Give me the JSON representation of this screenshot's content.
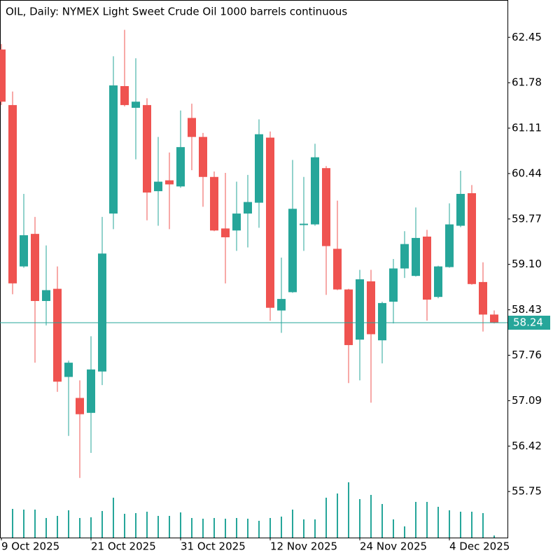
{
  "chart_data": {
    "type": "candlestick",
    "title": "OIL, Daily:  NYMEX Light Sweet Crude Oil 1000 barrels continuous",
    "categories": [
      "9 Oct 2025",
      null,
      null,
      null,
      null,
      null,
      null,
      null,
      "21 Oct 2025",
      null,
      null,
      null,
      null,
      null,
      null,
      null,
      "31 Oct 2025",
      null,
      null,
      null,
      null,
      null,
      null,
      null,
      "12 Nov 2025",
      null,
      null,
      null,
      null,
      null,
      null,
      null,
      "24 Nov 2025",
      null,
      null,
      null,
      null,
      null,
      null,
      null,
      "4 Dec 2025",
      null,
      null,
      null,
      null
    ],
    "open": [
      62.27,
      61.45,
      59.07,
      59.55,
      58.56,
      58.74,
      57.44,
      57.13,
      56.91,
      57.52,
      59.85,
      61.73,
      61.41,
      61.45,
      60.18,
      60.34,
      60.25,
      61.26,
      60.98,
      60.39,
      59.63,
      59.6,
      59.85,
      60.01,
      60.97,
      58.42,
      58.69,
      59.68,
      59.69,
      60.52,
      59.33,
      58.73,
      57.99,
      58.85,
      57.98,
      58.55,
      59.04,
      58.93,
      59.51,
      58.62,
      59.06,
      59.67,
      60.15,
      58.84,
      58.36
    ],
    "high": [
      62.35,
      61.65,
      60.14,
      59.8,
      59.38,
      59.07,
      57.68,
      57.39,
      58.04,
      59.8,
      62.17,
      62.56,
      62.14,
      61.55,
      60.98,
      60.75,
      61.37,
      61.47,
      61.04,
      60.47,
      60.45,
      60.32,
      60.42,
      61.24,
      61.06,
      59.2,
      60.64,
      60.39,
      60.88,
      60.55,
      60.04,
      58.74,
      59.02,
      59.02,
      58.55,
      59.18,
      59.59,
      59.94,
      59.61,
      59.08,
      60.0,
      60.48,
      60.27,
      59.13,
      58.42
    ],
    "low": [
      61.45,
      58.66,
      59.05,
      57.65,
      58.2,
      57.22,
      56.57,
      55.95,
      56.32,
      57.32,
      59.62,
      61.43,
      60.65,
      59.75,
      59.67,
      59.62,
      60.23,
      60.49,
      59.95,
      59.59,
      58.82,
      59.3,
      59.35,
      59.64,
      58.27,
      58.09,
      58.68,
      59.3,
      59.67,
      58.65,
      58.72,
      57.35,
      57.39,
      57.06,
      57.64,
      58.23,
      58.9,
      58.92,
      58.27,
      58.6,
      59.05,
      59.65,
      58.8,
      58.11,
      58.23
    ],
    "close": [
      61.5,
      58.82,
      59.53,
      58.56,
      58.72,
      57.37,
      57.65,
      56.89,
      57.55,
      59.26,
      61.74,
      61.45,
      61.5,
      60.16,
      60.32,
      60.28,
      60.83,
      60.98,
      60.39,
      59.6,
      59.5,
      59.85,
      60.02,
      61.02,
      58.46,
      58.59,
      59.92,
      59.7,
      60.68,
      59.37,
      58.73,
      57.91,
      58.88,
      58.07,
      58.53,
      59.04,
      59.4,
      59.49,
      58.58,
      59.07,
      59.69,
      60.14,
      58.81,
      58.36,
      58.24
    ],
    "volume": [
      null,
      41,
      40,
      40,
      28,
      31,
      39,
      28,
      29,
      38,
      57,
      34,
      35,
      37,
      31,
      31,
      36,
      28,
      27,
      28,
      27,
      28,
      27,
      24,
      28,
      30,
      40,
      26,
      26,
      57,
      63,
      79,
      55,
      61,
      48,
      26,
      16,
      51,
      51,
      44,
      39,
      37,
      37,
      35,
      3
    ],
    "volume_lim": [
      0,
      100
    ],
    "up_color": "#26a69a",
    "down_color": "#ef5350",
    "volume_color": "#26a69a",
    "ylim": [
      55.07,
      63.0
    ],
    "yticks": [
      55.75,
      56.42,
      57.09,
      57.76,
      58.43,
      {
        "value": 59.1,
        "label": "59.10"
      },
      59.77,
      60.44,
      61.11,
      61.78,
      62.45
    ],
    "last_price": 58.24
  }
}
